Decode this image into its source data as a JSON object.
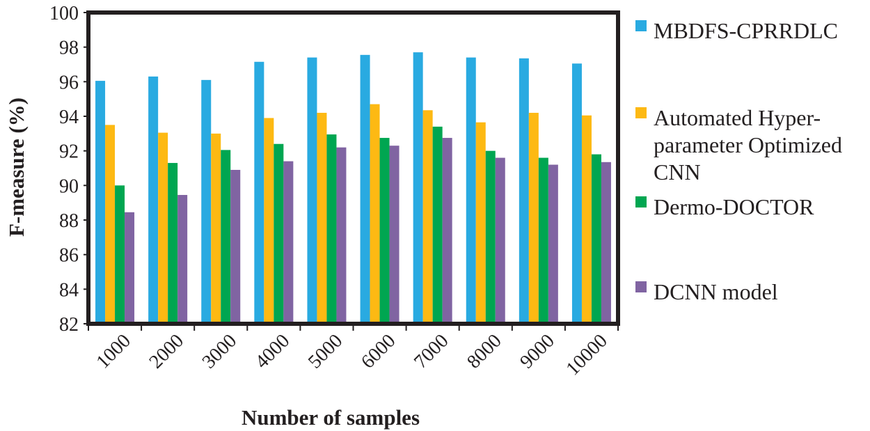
{
  "chart_data": {
    "type": "bar",
    "title": "",
    "xlabel": "Number of samples",
    "ylabel": "F-measure (%)",
    "ylim": [
      82,
      100
    ],
    "yticks": [
      82,
      84,
      86,
      88,
      90,
      92,
      94,
      96,
      98,
      100
    ],
    "grid": false,
    "legend_position": "right",
    "categories": [
      "1000",
      "2000",
      "3000",
      "4000",
      "5000",
      "6000",
      "7000",
      "8000",
      "9000",
      "10000"
    ],
    "series": [
      {
        "name": "MBDFS-CPRRDLC",
        "color": "#29aae1",
        "values": [
          96.05,
          96.3,
          96.1,
          97.15,
          97.4,
          97.55,
          97.7,
          97.4,
          97.35,
          97.05
        ]
      },
      {
        "name": "Automated Hyper-parameter Optimized CNN",
        "color": "#fdb913",
        "legend_lines": [
          "Automated Hyper-",
          "parameter Optimized",
          "CNN"
        ],
        "values": [
          93.5,
          93.05,
          93.0,
          93.9,
          94.2,
          94.7,
          94.35,
          93.65,
          94.2,
          94.05
        ]
      },
      {
        "name": "Dermo-DOCTOR",
        "color": "#00a651",
        "values": [
          90.0,
          91.3,
          92.05,
          92.4,
          92.95,
          92.75,
          93.4,
          92.0,
          91.6,
          91.8
        ]
      },
      {
        "name": "DCNN model",
        "color": "#8064a2",
        "values": [
          88.45,
          89.45,
          90.9,
          91.4,
          92.2,
          92.3,
          92.75,
          91.6,
          91.2,
          91.35
        ]
      }
    ]
  }
}
